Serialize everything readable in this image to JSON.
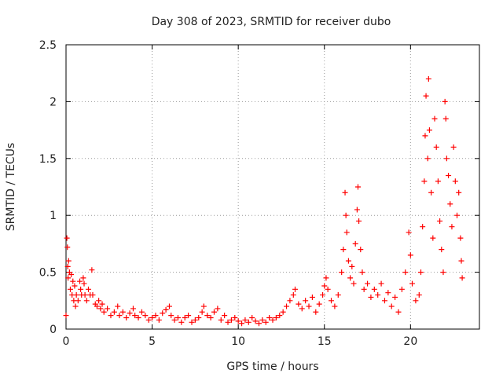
{
  "chart_data": {
    "type": "scatter",
    "title": "Day 308 of 2023, SRMTID for receiver dubo",
    "xlabel": "GPS time / hours",
    "ylabel": "SRMTID / TECUs",
    "xlim": [
      0,
      24
    ],
    "ylim": [
      0,
      2.5
    ],
    "x_ticks": [
      0,
      5,
      10,
      15,
      20
    ],
    "x_tick_labels": [
      "0",
      "5",
      "10",
      "15",
      "20"
    ],
    "y_ticks": [
      0,
      0.5,
      1,
      1.5,
      2,
      2.5
    ],
    "y_tick_labels": [
      "0",
      "0.5",
      "1",
      "1.5",
      "2",
      "2.5"
    ],
    "grid": true,
    "marker": "+",
    "marker_color": "#ff0000",
    "series": [
      {
        "name": "dubo",
        "points": [
          [
            0.0,
            0.12
          ],
          [
            0.05,
            0.8
          ],
          [
            0.08,
            0.72
          ],
          [
            0.1,
            0.55
          ],
          [
            0.12,
            0.45
          ],
          [
            0.15,
            0.6
          ],
          [
            0.2,
            0.5
          ],
          [
            0.25,
            0.35
          ],
          [
            0.3,
            0.48
          ],
          [
            0.35,
            0.3
          ],
          [
            0.4,
            0.42
          ],
          [
            0.45,
            0.25
          ],
          [
            0.5,
            0.38
          ],
          [
            0.55,
            0.2
          ],
          [
            0.6,
            0.3
          ],
          [
            0.7,
            0.25
          ],
          [
            0.8,
            0.42
          ],
          [
            0.85,
            0.35
          ],
          [
            0.9,
            0.3
          ],
          [
            1.0,
            0.45
          ],
          [
            1.05,
            0.4
          ],
          [
            1.1,
            0.3
          ],
          [
            1.2,
            0.25
          ],
          [
            1.3,
            0.35
          ],
          [
            1.4,
            0.3
          ],
          [
            1.5,
            0.52
          ],
          [
            1.55,
            0.3
          ],
          [
            1.7,
            0.22
          ],
          [
            1.8,
            0.2
          ],
          [
            1.9,
            0.25
          ],
          [
            2.0,
            0.18
          ],
          [
            2.1,
            0.22
          ],
          [
            2.2,
            0.15
          ],
          [
            2.4,
            0.18
          ],
          [
            2.6,
            0.12
          ],
          [
            2.8,
            0.15
          ],
          [
            3.0,
            0.2
          ],
          [
            3.1,
            0.12
          ],
          [
            3.3,
            0.15
          ],
          [
            3.5,
            0.1
          ],
          [
            3.7,
            0.14
          ],
          [
            3.9,
            0.18
          ],
          [
            4.0,
            0.12
          ],
          [
            4.2,
            0.1
          ],
          [
            4.4,
            0.15
          ],
          [
            4.6,
            0.12
          ],
          [
            4.8,
            0.08
          ],
          [
            5.0,
            0.1
          ],
          [
            5.2,
            0.12
          ],
          [
            5.4,
            0.08
          ],
          [
            5.6,
            0.14
          ],
          [
            5.8,
            0.17
          ],
          [
            6.0,
            0.2
          ],
          [
            6.1,
            0.12
          ],
          [
            6.3,
            0.08
          ],
          [
            6.5,
            0.1
          ],
          [
            6.7,
            0.06
          ],
          [
            6.9,
            0.1
          ],
          [
            7.1,
            0.12
          ],
          [
            7.3,
            0.06
          ],
          [
            7.5,
            0.08
          ],
          [
            7.7,
            0.1
          ],
          [
            7.9,
            0.15
          ],
          [
            8.0,
            0.2
          ],
          [
            8.2,
            0.12
          ],
          [
            8.4,
            0.1
          ],
          [
            8.6,
            0.15
          ],
          [
            8.8,
            0.18
          ],
          [
            9.0,
            0.08
          ],
          [
            9.2,
            0.12
          ],
          [
            9.4,
            0.06
          ],
          [
            9.6,
            0.08
          ],
          [
            9.8,
            0.1
          ],
          [
            10.0,
            0.07
          ],
          [
            10.2,
            0.05
          ],
          [
            10.4,
            0.08
          ],
          [
            10.6,
            0.06
          ],
          [
            10.8,
            0.1
          ],
          [
            11.0,
            0.07
          ],
          [
            11.2,
            0.05
          ],
          [
            11.4,
            0.08
          ],
          [
            11.6,
            0.06
          ],
          [
            11.8,
            0.1
          ],
          [
            12.0,
            0.08
          ],
          [
            12.2,
            0.1
          ],
          [
            12.4,
            0.12
          ],
          [
            12.6,
            0.15
          ],
          [
            12.8,
            0.2
          ],
          [
            13.0,
            0.25
          ],
          [
            13.2,
            0.3
          ],
          [
            13.3,
            0.35
          ],
          [
            13.5,
            0.22
          ],
          [
            13.7,
            0.18
          ],
          [
            13.9,
            0.25
          ],
          [
            14.1,
            0.2
          ],
          [
            14.3,
            0.28
          ],
          [
            14.5,
            0.15
          ],
          [
            14.7,
            0.22
          ],
          [
            14.9,
            0.3
          ],
          [
            15.0,
            0.38
          ],
          [
            15.1,
            0.45
          ],
          [
            15.2,
            0.35
          ],
          [
            15.4,
            0.25
          ],
          [
            15.6,
            0.2
          ],
          [
            15.8,
            0.3
          ],
          [
            16.0,
            0.5
          ],
          [
            16.1,
            0.7
          ],
          [
            16.2,
            1.2
          ],
          [
            16.25,
            1.0
          ],
          [
            16.3,
            0.85
          ],
          [
            16.4,
            0.6
          ],
          [
            16.5,
            0.45
          ],
          [
            16.6,
            0.55
          ],
          [
            16.7,
            0.4
          ],
          [
            16.8,
            0.75
          ],
          [
            16.9,
            1.05
          ],
          [
            16.95,
            1.25
          ],
          [
            17.0,
            0.95
          ],
          [
            17.1,
            0.7
          ],
          [
            17.2,
            0.5
          ],
          [
            17.3,
            0.35
          ],
          [
            17.5,
            0.4
          ],
          [
            17.7,
            0.28
          ],
          [
            17.9,
            0.35
          ],
          [
            18.1,
            0.3
          ],
          [
            18.3,
            0.4
          ],
          [
            18.5,
            0.25
          ],
          [
            18.7,
            0.32
          ],
          [
            18.9,
            0.2
          ],
          [
            19.1,
            0.28
          ],
          [
            19.3,
            0.15
          ],
          [
            19.5,
            0.35
          ],
          [
            19.7,
            0.5
          ],
          [
            19.9,
            0.85
          ],
          [
            20.0,
            0.65
          ],
          [
            20.1,
            0.4
          ],
          [
            20.3,
            0.25
          ],
          [
            20.5,
            0.3
          ],
          [
            20.6,
            0.5
          ],
          [
            20.7,
            0.9
          ],
          [
            20.8,
            1.3
          ],
          [
            20.85,
            1.7
          ],
          [
            20.9,
            2.05
          ],
          [
            21.0,
            1.5
          ],
          [
            21.05,
            2.2
          ],
          [
            21.1,
            1.75
          ],
          [
            21.2,
            1.2
          ],
          [
            21.3,
            0.8
          ],
          [
            21.4,
            1.85
          ],
          [
            21.5,
            1.6
          ],
          [
            21.6,
            1.3
          ],
          [
            21.7,
            0.95
          ],
          [
            21.8,
            0.7
          ],
          [
            21.9,
            0.5
          ],
          [
            22.0,
            2.0
          ],
          [
            22.05,
            1.85
          ],
          [
            22.1,
            1.5
          ],
          [
            22.2,
            1.35
          ],
          [
            22.3,
            1.1
          ],
          [
            22.4,
            0.9
          ],
          [
            22.5,
            1.6
          ],
          [
            22.6,
            1.3
          ],
          [
            22.7,
            1.0
          ],
          [
            22.8,
            1.2
          ],
          [
            22.9,
            0.8
          ],
          [
            22.95,
            0.6
          ],
          [
            23.0,
            0.45
          ]
        ]
      }
    ]
  }
}
